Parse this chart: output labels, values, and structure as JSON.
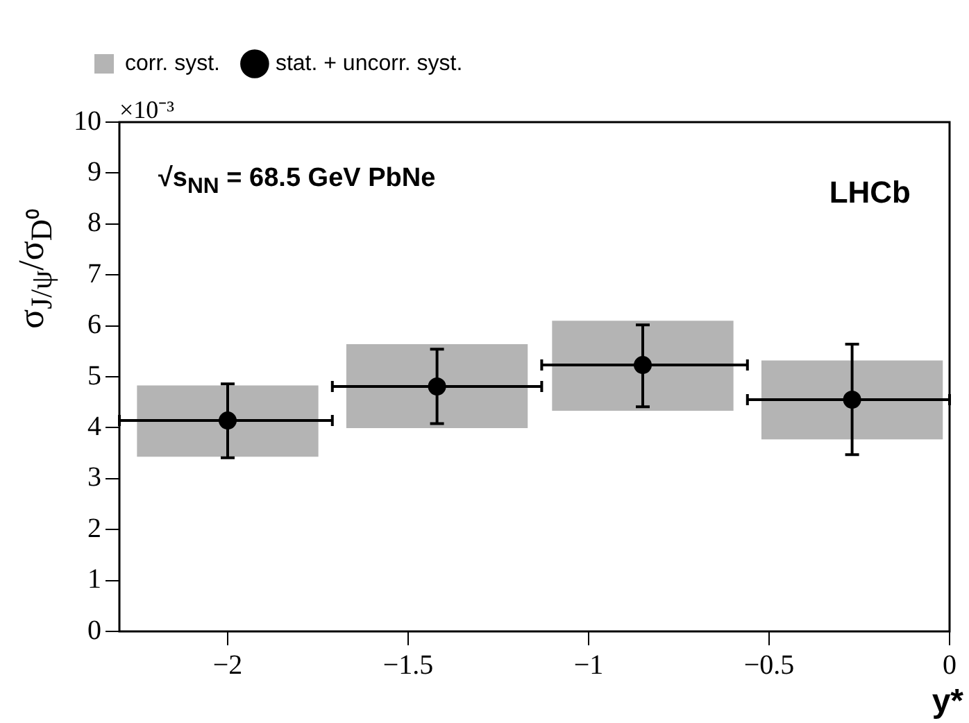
{
  "chart_data": {
    "type": "scatter",
    "xlabel": "y*",
    "ylabel": "σ$_{J/ψ}$/σ$_{D⁰}$",
    "annotations": [
      "×10⁻³",
      "√s$_{NN}$ = 68.5 GeV PbNe",
      "LHCb"
    ],
    "xlim": [
      -2.3,
      0
    ],
    "xticks": [
      {
        "value": -2,
        "label": "−2"
      },
      {
        "value": -1.5,
        "label": "−1.5"
      },
      {
        "value": -1,
        "label": "−1"
      },
      {
        "value": -0.5,
        "label": "−0.5"
      },
      0
    ],
    "ylim": [
      0,
      10
    ],
    "yticks": [
      0,
      1,
      2,
      3,
      4,
      5,
      6,
      7,
      8,
      9,
      10
    ],
    "grid": false,
    "legend": "top left",
    "series": [
      {
        "type": "bar",
        "name": "corr. syst.",
        "color": "#b4b4b4",
        "x": [
          -2.0,
          -1.42,
          -0.85,
          -0.27
        ],
        "base": [
          3.44,
          4.0,
          4.34,
          3.78
        ],
        "values": [
          1.38,
          1.63,
          1.75,
          1.53
        ]
      },
      {
        "name": "stat. + uncorr. syst.",
        "color": "#000000",
        "marker": "circle",
        "x": [
          -2.0,
          -1.42,
          -0.85,
          -0.27
        ],
        "values": [
          4.14,
          4.81,
          5.23,
          4.55
        ],
        "errors": [
          [
            3.41,
            4.86
          ],
          [
            4.08,
            5.54
          ],
          [
            4.41,
            6.02
          ],
          [
            3.47,
            5.64
          ]
        ],
        "xerrors": [
          [
            -2.3,
            -1.71
          ],
          [
            -1.71,
            -1.13
          ],
          [
            -1.13,
            -0.56
          ],
          [
            -0.56,
            0
          ]
        ]
      }
    ]
  }
}
